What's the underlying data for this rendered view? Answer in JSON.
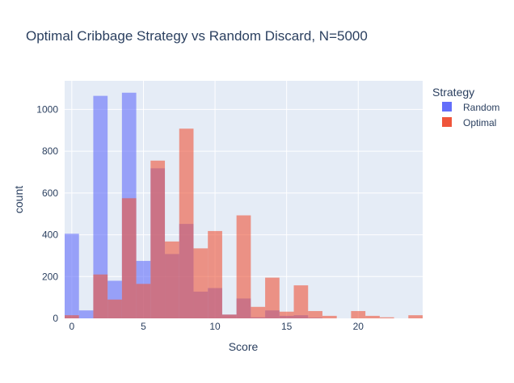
{
  "chart_data": {
    "type": "bar",
    "barmode": "overlay",
    "title": "Optimal Cribbage Strategy vs Random Discard, N=5000",
    "xlabel": "Score",
    "ylabel": "count",
    "xlim": [
      -0.5,
      24.5
    ],
    "ylim": [
      0,
      1137
    ],
    "xticks": [
      0,
      5,
      10,
      15,
      20
    ],
    "yticks": [
      0,
      200,
      400,
      600,
      800,
      1000
    ],
    "grid": true,
    "legend": {
      "title": "Strategy",
      "position": "top-right"
    },
    "series": [
      {
        "name": "Random",
        "color": "#636efa",
        "x": [
          0,
          1,
          2,
          3,
          4,
          5,
          6,
          7,
          8,
          9,
          10,
          11,
          12,
          13,
          14,
          15,
          16,
          17,
          18,
          19,
          20,
          21,
          22,
          23,
          24
        ],
        "values": [
          405,
          38,
          1065,
          180,
          1080,
          275,
          718,
          308,
          452,
          128,
          145,
          18,
          95,
          5,
          38,
          12,
          15,
          3,
          0,
          0,
          0,
          0,
          0,
          0,
          0
        ]
      },
      {
        "name": "Optimal",
        "color": "#ef553b",
        "x": [
          0,
          1,
          2,
          3,
          4,
          5,
          6,
          7,
          8,
          9,
          10,
          11,
          12,
          13,
          14,
          15,
          16,
          17,
          18,
          19,
          20,
          21,
          22,
          23,
          24
        ],
        "values": [
          15,
          0,
          210,
          90,
          575,
          165,
          755,
          368,
          908,
          335,
          418,
          18,
          493,
          55,
          195,
          32,
          158,
          35,
          12,
          0,
          35,
          12,
          5,
          0,
          15
        ]
      }
    ]
  }
}
